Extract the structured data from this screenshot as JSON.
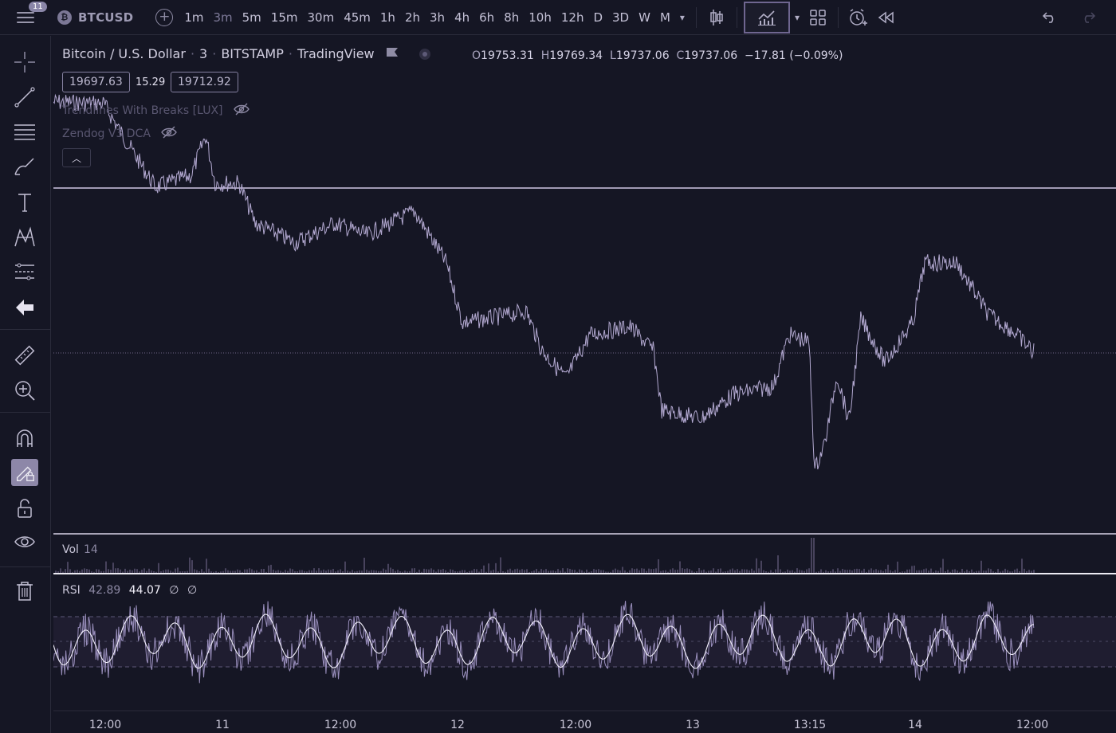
{
  "toolbar": {
    "notifications": "11",
    "coin_glyph": "₿",
    "symbol": "BTCUSD",
    "timeframes": [
      "1m",
      "3m",
      "5m",
      "15m",
      "30m",
      "45m",
      "1h",
      "2h",
      "3h",
      "4h",
      "6h",
      "8h",
      "10h",
      "12h",
      "D",
      "3D",
      "W",
      "M"
    ],
    "active_timeframe": "3m"
  },
  "legend": {
    "name": "Bitcoin / U.S. Dollar",
    "interval": "3",
    "exchange": "BITSTAMP",
    "source": "TradingView",
    "open_label": "O",
    "open": "19753.31",
    "high_label": "H",
    "high": "19769.34",
    "low_label": "L",
    "low": "19737.06",
    "close_label": "C",
    "close": "19737.06",
    "change": "−17.81 (−0.09%)",
    "bid": "19697.63",
    "spread": "15.29",
    "ask": "19712.92"
  },
  "indicators": [
    {
      "name": "Trendlines With Breaks [LUX]"
    },
    {
      "name": "Zendog V3 DCA"
    }
  ],
  "volume_pane": {
    "name": "Vol",
    "value": "14"
  },
  "rsi_pane": {
    "name": "RSI",
    "value1": "42.89",
    "value2": "44.07",
    "value3": "∅",
    "value4": "∅"
  },
  "time_axis": [
    "12:00",
    "11",
    "12:00",
    "12",
    "12:00",
    "13",
    "13:15",
    "14",
    "12:00"
  ],
  "colors": {
    "background": "#151624",
    "line": "#b3a9d1",
    "accent": "#8d87a8"
  }
}
